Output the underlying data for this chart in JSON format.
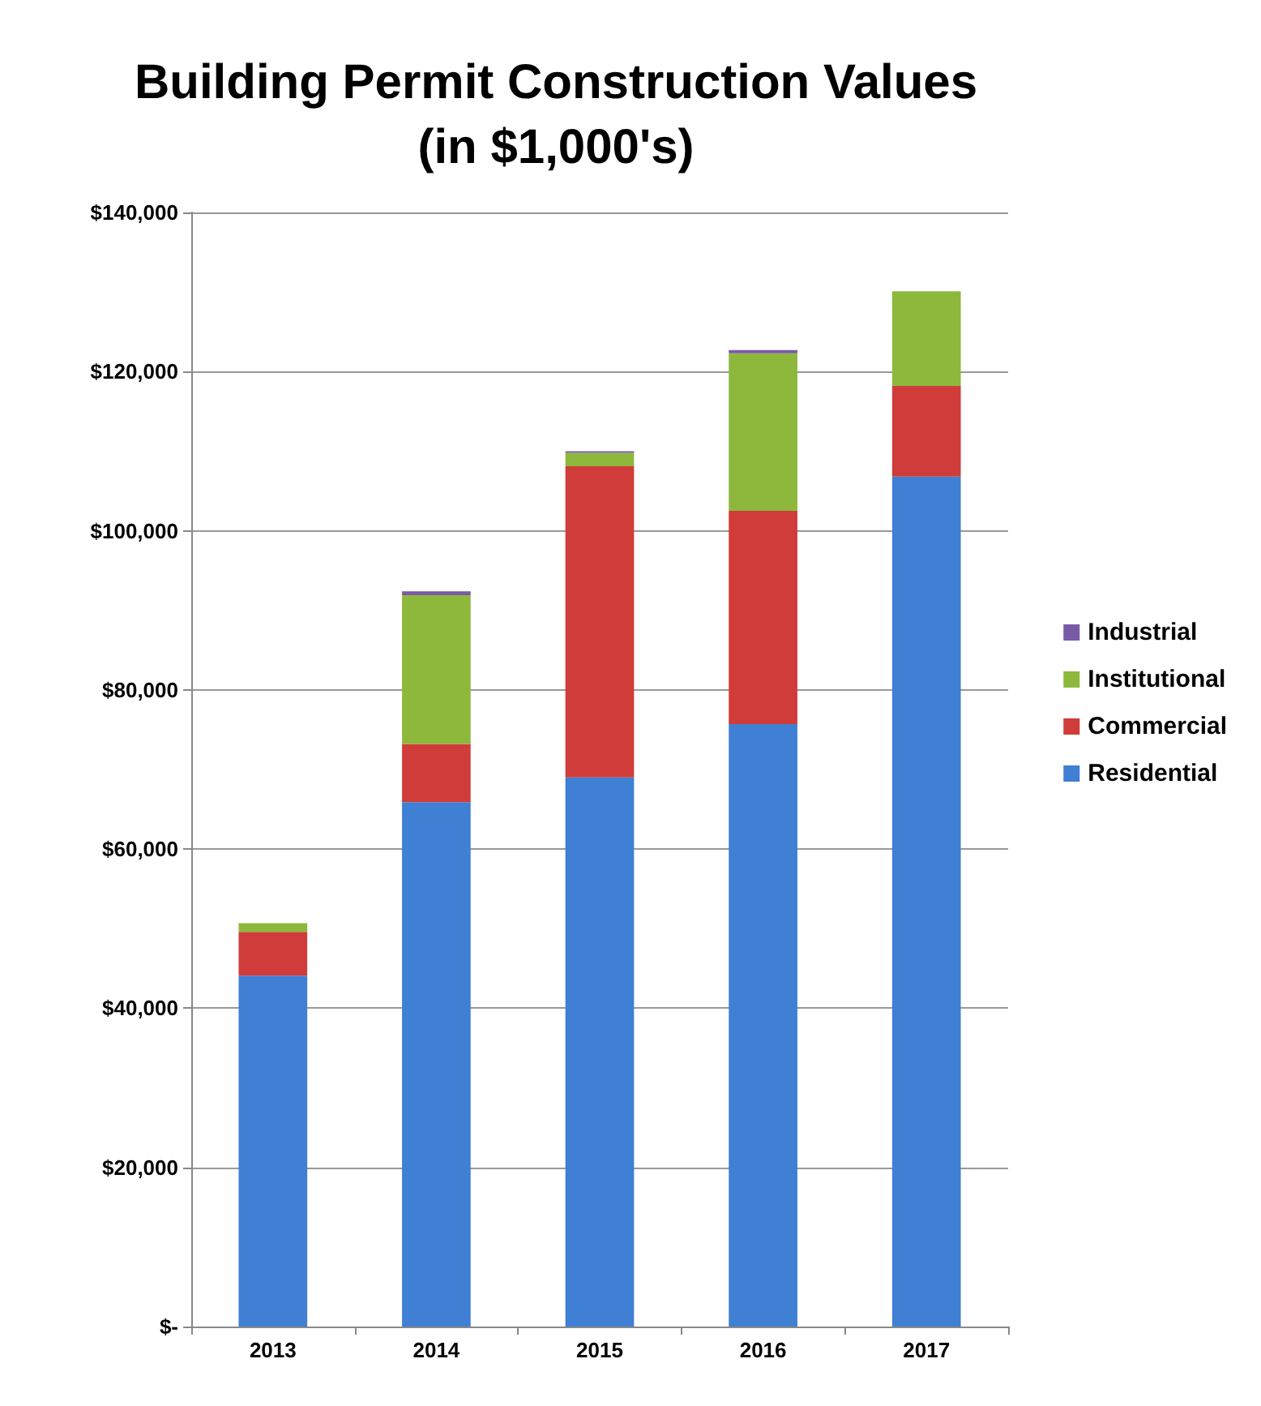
{
  "chart_data": {
    "type": "bar",
    "title": "Building Permit Construction Values\n(in $1,000's)",
    "categories": [
      "2013",
      "2014",
      "2015",
      "2016",
      "2017"
    ],
    "stacked": true,
    "legend": "right",
    "grid": "y",
    "ylim": [
      0,
      140000
    ],
    "yticks": [
      {
        "value": 0,
        "label": "$-"
      },
      {
        "value": 20000,
        "label": "$20,000"
      },
      {
        "value": 40000,
        "label": "$40,000"
      },
      {
        "value": 60000,
        "label": "$60,000"
      },
      {
        "value": 80000,
        "label": "$80,000"
      },
      {
        "value": 100000,
        "label": "$100,000"
      },
      {
        "value": 120000,
        "label": "$120,000"
      },
      {
        "value": 140000,
        "label": "$140,000"
      }
    ],
    "series": [
      {
        "name": "Residential",
        "color": "#3f7fd4",
        "values": [
          44100,
          65900,
          69000,
          75700,
          106800
        ]
      },
      {
        "name": "Commercial",
        "color": "#d03c3a",
        "values": [
          5500,
          7300,
          39100,
          26800,
          11400
        ]
      },
      {
        "name": "Institutional",
        "color": "#8db83c",
        "values": [
          1100,
          18700,
          1700,
          19800,
          11900
        ]
      },
      {
        "name": "Industrial",
        "color": "#7a5aa6",
        "values": [
          0,
          500,
          200,
          400,
          0
        ]
      }
    ]
  }
}
